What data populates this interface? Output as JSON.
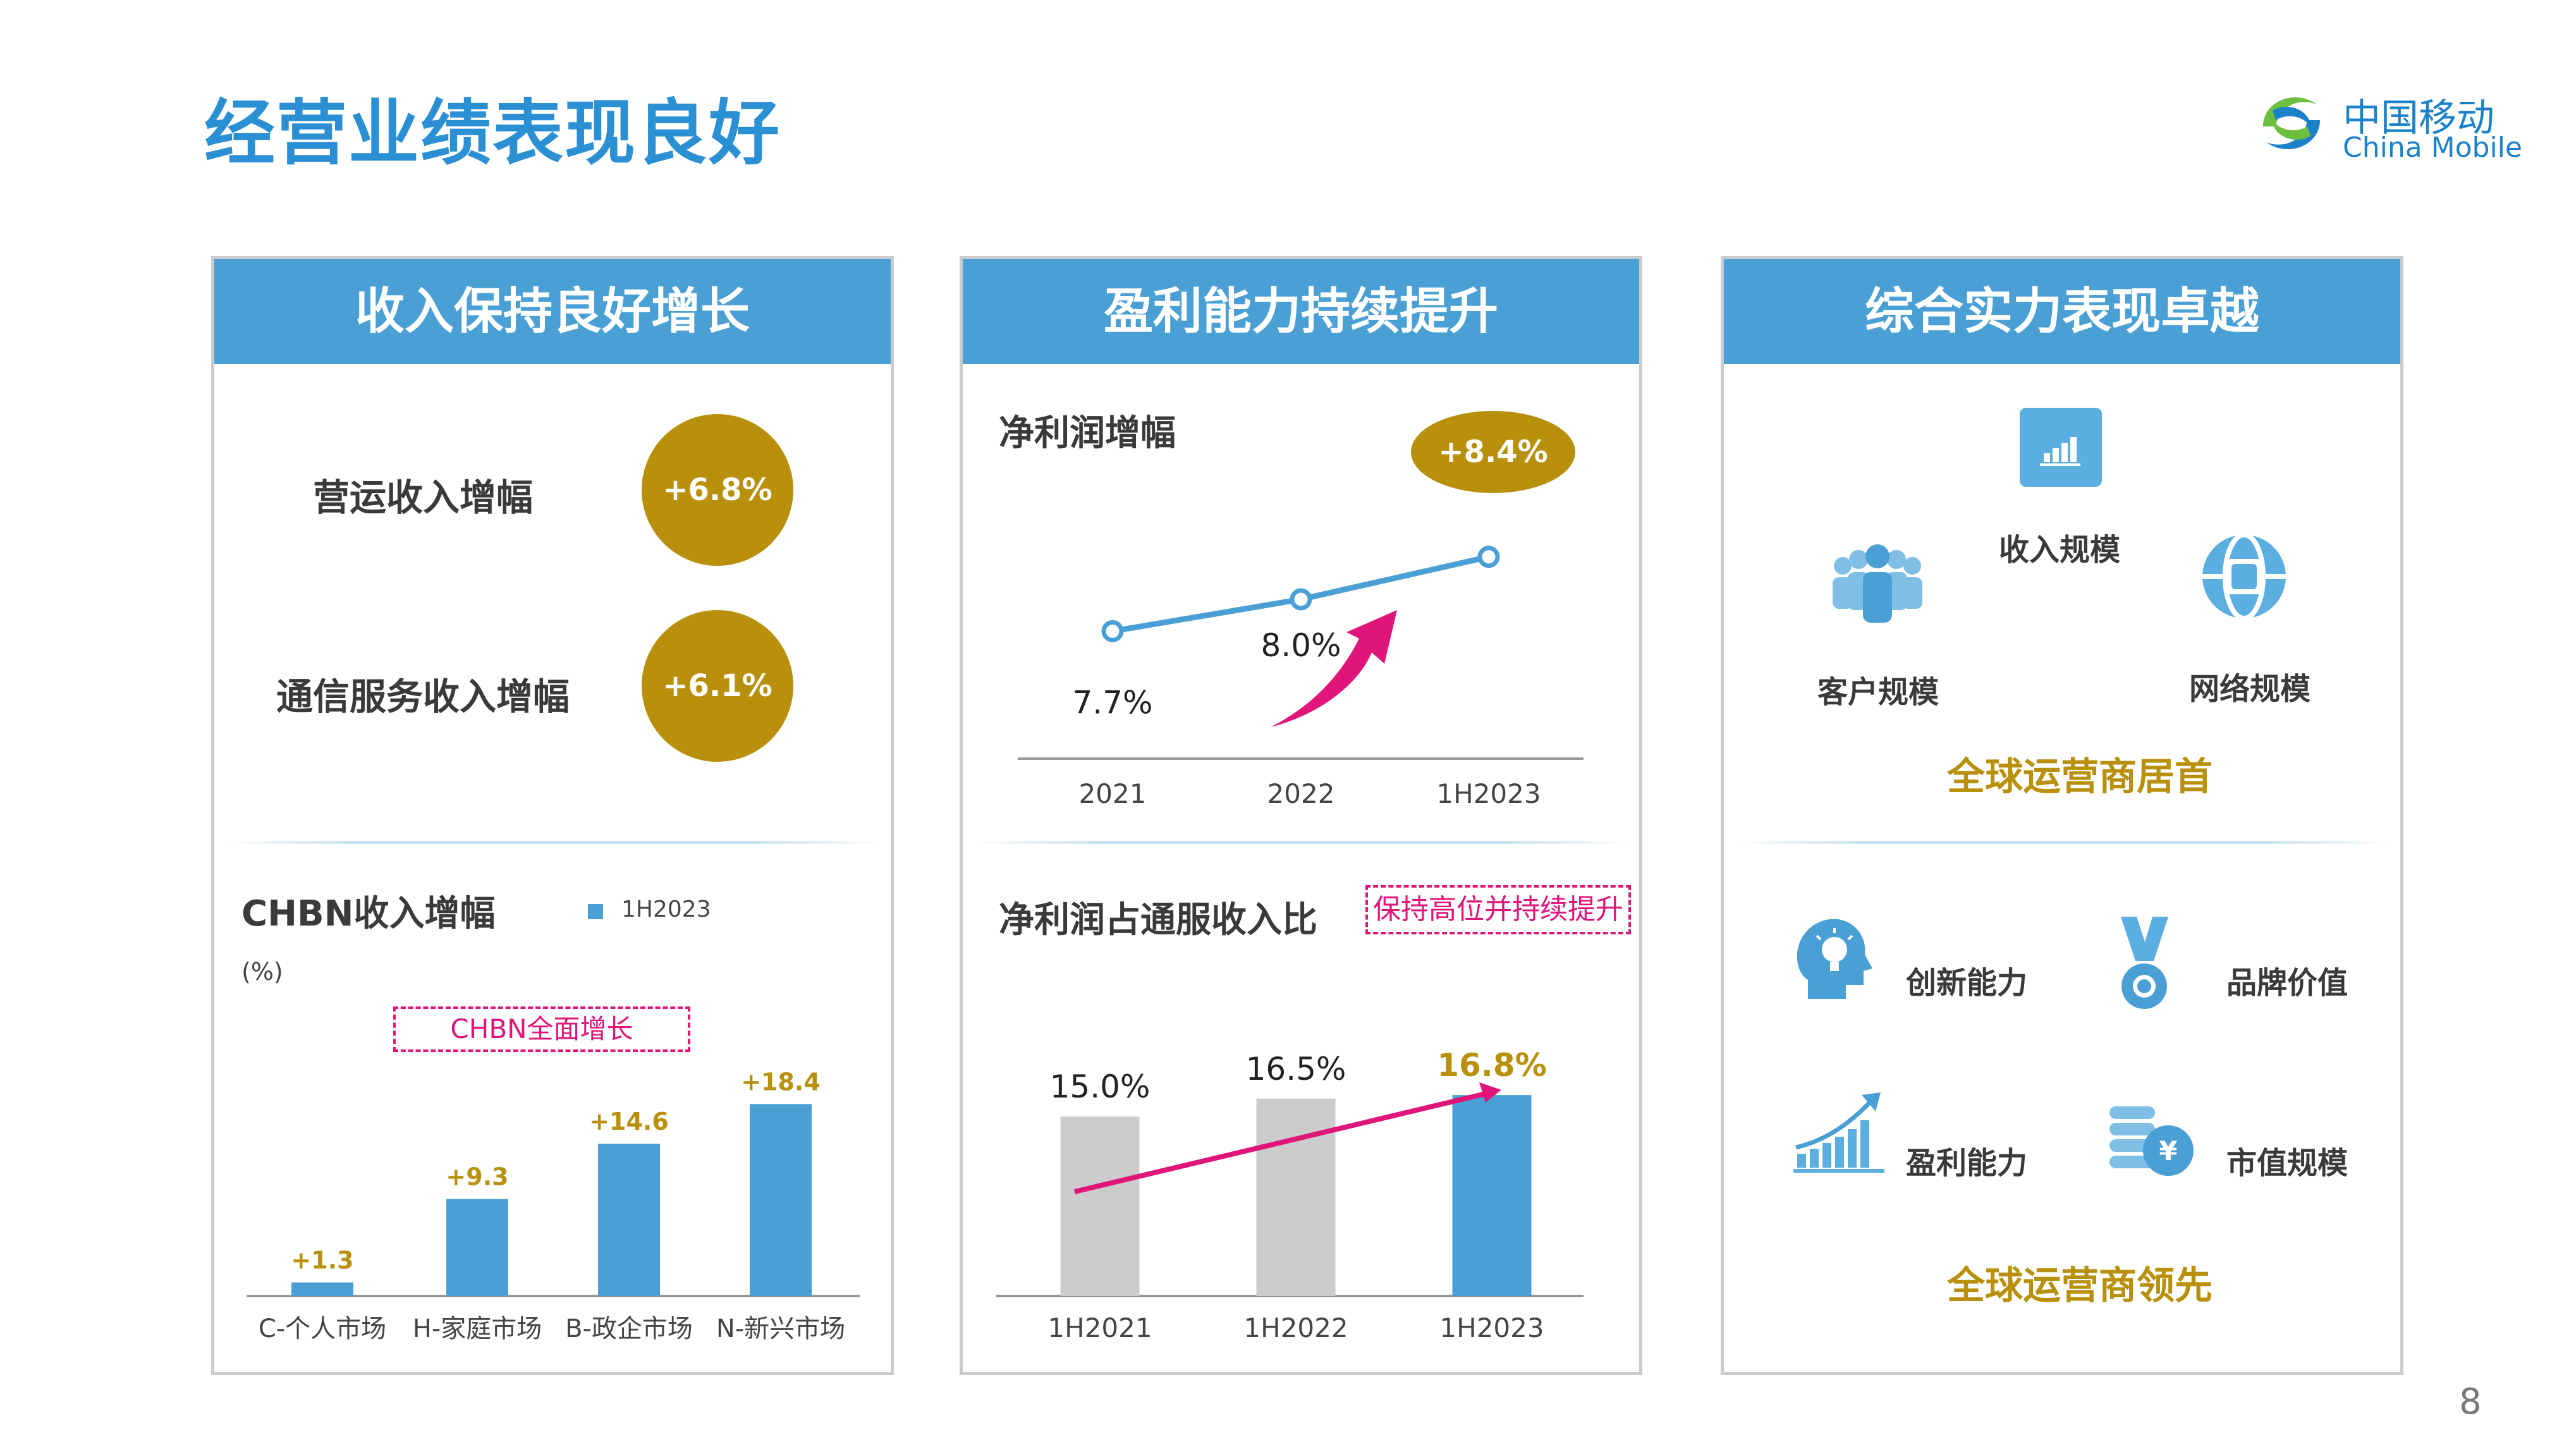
{
  "title": "经营业绩表现良好",
  "logo": {
    "cn": "中国移动",
    "en": "China Mobile"
  },
  "page_number": "8",
  "panel1": {
    "header": "收入保持良好增长",
    "metric1": {
      "label": "营运收入增幅",
      "value": "+6.8%"
    },
    "metric2": {
      "label": "通信服务收入增幅",
      "value": "+6.1%"
    },
    "chart_title": "CHBN收入增幅",
    "unit": "(%)",
    "callout": "CHBN全面增长"
  },
  "panel2": {
    "header": "盈利能力持续提升",
    "line_title": "净利润增幅",
    "badge": "+8.4%",
    "bar_title": "净利润占通服收入比",
    "callout": "保持高位并持续提升"
  },
  "panel3": {
    "header": "综合实力表现卓越",
    "top_items": [
      {
        "label": "收入规模",
        "icon": "bar-chart-icon"
      },
      {
        "label": "客户规模",
        "icon": "people-icon"
      },
      {
        "label": "网络规模",
        "icon": "globe-icon"
      }
    ],
    "top_summary": "全球运营商居首",
    "bottom_items": [
      {
        "label": "创新能力",
        "icon": "lightbulb-head-icon"
      },
      {
        "label": "品牌价值",
        "icon": "medal-icon"
      },
      {
        "label": "盈利能力",
        "icon": "growth-chart-icon"
      },
      {
        "label": "市值规模",
        "icon": "coins-icon"
      }
    ],
    "bottom_summary": "全球运营商领先"
  },
  "colors": {
    "accent": "#4a9fd5",
    "gold": "#b8900c",
    "magenta": "#e0157a",
    "gray_bar": "#cccccc",
    "title_blue": "#2a8fd3"
  },
  "chart_data": [
    {
      "type": "bar",
      "title": "CHBN收入增幅",
      "ylabel": "(%)",
      "categories": [
        "C-个人市场",
        "H-家庭市场",
        "B-政企市场",
        "N-新兴市场"
      ],
      "series": [
        {
          "name": "1H2023",
          "values": [
            1.3,
            9.3,
            14.6,
            18.4
          ]
        }
      ],
      "data_labels": [
        "+1.3",
        "+9.3",
        "+14.6",
        "+18.4"
      ],
      "ylim": [
        0,
        20
      ],
      "legend": "top"
    },
    {
      "type": "line",
      "title": "净利润增幅",
      "categories": [
        "2021",
        "2022",
        "1H2023"
      ],
      "values": [
        7.7,
        8.0,
        8.4
      ],
      "data_labels": [
        "7.7%",
        "8.0%",
        "+8.4%"
      ],
      "ylim": [
        6.5,
        9.0
      ]
    },
    {
      "type": "bar",
      "title": "净利润占通服收入比",
      "categories": [
        "1H2021",
        "1H2022",
        "1H2023"
      ],
      "values": [
        15.0,
        16.5,
        16.8
      ],
      "data_labels": [
        "15.0%",
        "16.5%",
        "16.8%"
      ],
      "ylim": [
        0,
        18.5
      ]
    }
  ]
}
